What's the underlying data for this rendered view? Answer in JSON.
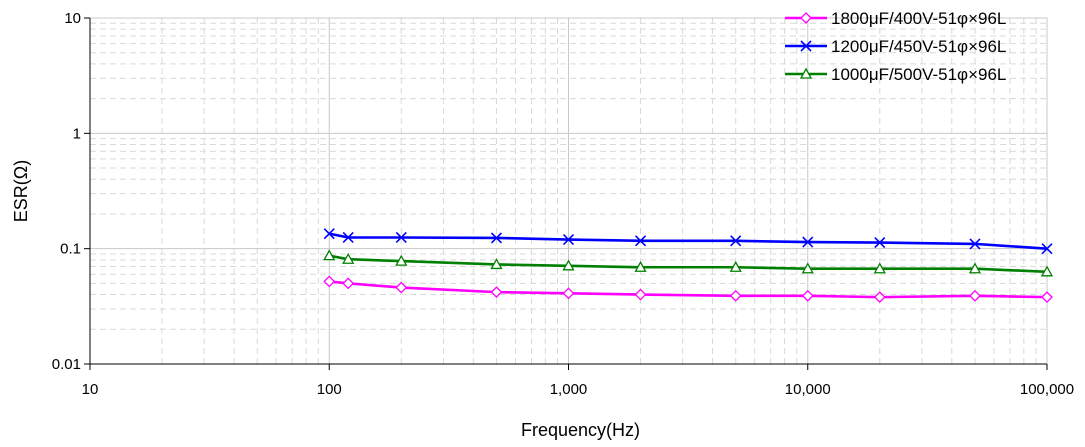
{
  "chart_data": {
    "type": "line",
    "title": "",
    "xlabel": "Frequency(Hz)",
    "ylabel": "ESR(Ω)",
    "x_scale": "log",
    "y_scale": "log",
    "xlim": [
      10,
      100000
    ],
    "ylim": [
      0.01,
      10
    ],
    "x_ticks": [
      {
        "value": 10,
        "label": "10"
      },
      {
        "value": 100,
        "label": "100"
      },
      {
        "value": 1000,
        "label": "1,000"
      },
      {
        "value": 10000,
        "label": "10,000"
      },
      {
        "value": 100000,
        "label": "100,000"
      }
    ],
    "y_ticks": [
      {
        "value": 0.01,
        "label": "0.01"
      },
      {
        "value": 0.1,
        "label": "0.1"
      },
      {
        "value": 1,
        "label": "1"
      },
      {
        "value": 10,
        "label": "10"
      }
    ],
    "grid": true,
    "legend_position": "top-right",
    "series": [
      {
        "name": "1800μF/400V-51φ×96L",
        "color": "#ff00ff",
        "marker": "diamond",
        "x": [
          100,
          120,
          200,
          500,
          1000,
          2000,
          5000,
          10000,
          20000,
          50000,
          100000
        ],
        "y": [
          0.052,
          0.05,
          0.046,
          0.042,
          0.041,
          0.04,
          0.039,
          0.039,
          0.038,
          0.039,
          0.038
        ]
      },
      {
        "name": "1200μF/450V-51φ×96L",
        "color": "#0000ff",
        "marker": "x",
        "x": [
          100,
          120,
          200,
          500,
          1000,
          2000,
          5000,
          10000,
          20000,
          50000,
          100000
        ],
        "y": [
          0.135,
          0.125,
          0.125,
          0.124,
          0.12,
          0.117,
          0.117,
          0.114,
          0.113,
          0.11,
          0.1
        ]
      },
      {
        "name": "1000μF/500V-51φ×96L",
        "color": "#008000",
        "marker": "triangle",
        "x": [
          100,
          120,
          200,
          500,
          1000,
          2000,
          5000,
          10000,
          20000,
          50000,
          100000
        ],
        "y": [
          0.087,
          0.081,
          0.078,
          0.073,
          0.071,
          0.069,
          0.069,
          0.067,
          0.067,
          0.067,
          0.063
        ]
      }
    ]
  }
}
